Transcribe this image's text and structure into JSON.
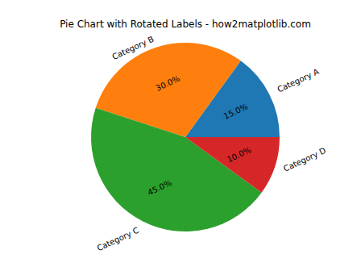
{
  "chart_data": {
    "type": "pie",
    "title": "Pie Chart with Rotated Labels - how2matplotlib.com",
    "categories": [
      "Category A",
      "Category B",
      "Category C",
      "Category D"
    ],
    "values": [
      15,
      30,
      45,
      10
    ],
    "value_labels": [
      "15.0%",
      "30.0%",
      "45.0%",
      "10.0%"
    ],
    "colors": [
      "#1f77b4",
      "#ff7f0e",
      "#2ca02c",
      "#d62728"
    ],
    "data_labels": true
  }
}
